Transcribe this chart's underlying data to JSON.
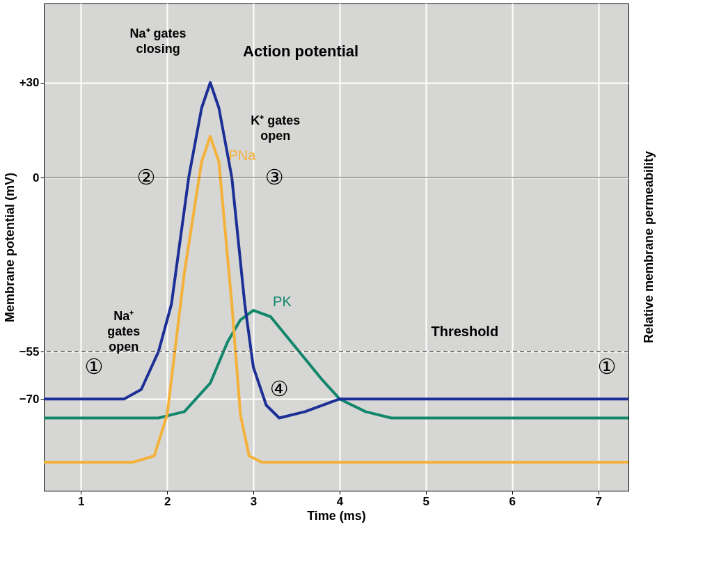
{
  "chart_data": {
    "type": "line",
    "xlabel": "Time (ms)",
    "ylabel": "Membrane potential (mV)",
    "y2label": "Relative membrane permeability",
    "xlim": [
      0.57,
      7.35
    ],
    "xticks": [
      1,
      2,
      3,
      4,
      5,
      6,
      7
    ],
    "ylim": [
      -99,
      55
    ],
    "yticks": [
      {
        "value": 30,
        "label": "+30"
      },
      0,
      {
        "value": -55,
        "label": "−55"
      },
      {
        "value": -70,
        "label": "−70"
      }
    ],
    "grid": true,
    "marker": "none",
    "line_style": "solid",
    "series": [
      {
        "name": "PK",
        "color": "#12876b",
        "x": [
          0.57,
          1.9,
          2.2,
          2.5,
          2.7,
          2.85,
          3.0,
          3.2,
          3.5,
          3.8,
          4.0,
          4.3,
          4.6,
          5.0,
          7.35
        ],
        "values": [
          -76,
          -76,
          -74,
          -65,
          -52,
          -45,
          -42,
          -44,
          -54,
          -64,
          -70,
          -74,
          -76,
          -76,
          -76
        ]
      },
      {
        "name": "PNa",
        "color": "#f4b23a",
        "x": [
          0.57,
          1.6,
          1.85,
          2.0,
          2.2,
          2.4,
          2.5,
          2.6,
          2.75,
          2.85,
          2.95,
          3.1,
          7.35
        ],
        "values": [
          -90,
          -90,
          -88,
          -75,
          -30,
          5,
          13,
          5,
          -40,
          -75,
          -88,
          -90,
          -90
        ]
      },
      {
        "name": "Action potential",
        "color": "#1c2f96",
        "x": [
          0.57,
          1.5,
          1.7,
          1.9,
          2.05,
          2.25,
          2.4,
          2.5,
          2.6,
          2.75,
          2.9,
          3.0,
          3.15,
          3.3,
          3.6,
          4.0,
          7.35
        ],
        "values": [
          -70,
          -70,
          -67,
          -55,
          -40,
          0,
          22,
          30,
          22,
          0,
          -40,
          -60,
          -72,
          -76,
          -74,
          -70,
          -70
        ]
      }
    ],
    "ref_lines": [
      {
        "axis": "y",
        "value": -55,
        "label": "Threshold",
        "color": "#555555",
        "line_style": "dashed"
      }
    ],
    "annotations": [
      {
        "text": "Na⁺ gates closing",
        "x": 2.5,
        "y": 30
      },
      {
        "text": "K⁺ gates open",
        "x": 2.65,
        "y": 20
      },
      {
        "text": "Na⁺ gates open",
        "x": 1.9,
        "y": -55
      },
      {
        "text": "①",
        "x": 1.15,
        "y": -70
      },
      {
        "text": "②",
        "x": 2.2,
        "y": -8
      },
      {
        "text": "③",
        "x": 2.8,
        "y": -8
      },
      {
        "text": "④",
        "x": 3.3,
        "y": -76
      },
      {
        "text": "①",
        "x": 7.1,
        "y": -70
      }
    ]
  }
}
